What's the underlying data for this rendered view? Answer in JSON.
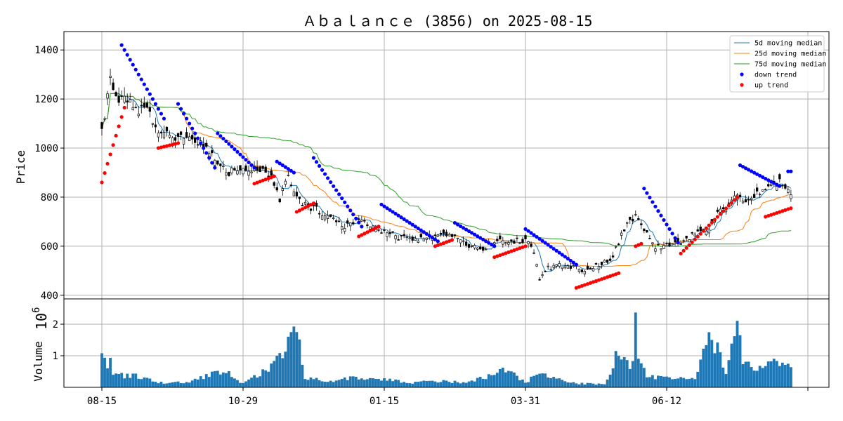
{
  "chart_data": {
    "type": "candlestick",
    "title": "Ａｂａｌａｎｃｅ (3856) on 2025-08-15",
    "price_panel": {
      "ylabel": "Price",
      "ylim": [
        385,
        1475
      ],
      "yticks": [
        400,
        600,
        800,
        1000,
        1200,
        1400
      ],
      "grid": true
    },
    "volume_panel": {
      "ylabel": "Volume",
      "offset_label": "10",
      "offset_exponent": "6",
      "ylim": [
        0,
        2.8
      ],
      "yticks": [
        1,
        2
      ],
      "grid": true,
      "bar_color": "#1f77b4"
    },
    "x_axis": {
      "tick_labels": [
        "08-15",
        "10-29",
        "01-15",
        "03-31",
        "06-12",
        ""
      ],
      "tick_index": [
        0,
        50,
        100,
        150,
        200,
        250
      ],
      "n_sessions": 245
    },
    "legend": {
      "placement": "top-right",
      "entries": [
        {
          "label": " 5d moving median",
          "kind": "line",
          "color": "#1f77b4"
        },
        {
          "label": "25d moving median",
          "kind": "line",
          "color": "#ff7f0e"
        },
        {
          "label": "75d moving median",
          "kind": "line",
          "color": "#2ca02c"
        },
        {
          "label": "down trend",
          "kind": "dot",
          "color": "#0000ff"
        },
        {
          "label": "up trend",
          "kind": "dot",
          "color": "#ff0000"
        }
      ]
    },
    "close_anchors": [
      [
        0,
        1060
      ],
      [
        3,
        1300
      ],
      [
        5,
        1200
      ],
      [
        8,
        1220
      ],
      [
        12,
        1160
      ],
      [
        16,
        1160
      ],
      [
        20,
        1060
      ],
      [
        25,
        1040
      ],
      [
        30,
        1040
      ],
      [
        35,
        1010
      ],
      [
        40,
        960
      ],
      [
        45,
        900
      ],
      [
        50,
        915
      ],
      [
        55,
        920
      ],
      [
        60,
        880
      ],
      [
        63,
        780
      ],
      [
        66,
        900
      ],
      [
        69,
        790
      ],
      [
        72,
        770
      ],
      [
        76,
        750
      ],
      [
        80,
        720
      ],
      [
        85,
        680
      ],
      [
        90,
        710
      ],
      [
        95,
        690
      ],
      [
        100,
        660
      ],
      [
        105,
        635
      ],
      [
        110,
        630
      ],
      [
        115,
        625
      ],
      [
        120,
        660
      ],
      [
        125,
        640
      ],
      [
        130,
        600
      ],
      [
        135,
        590
      ],
      [
        140,
        620
      ],
      [
        145,
        620
      ],
      [
        150,
        620
      ],
      [
        153,
        580
      ],
      [
        155,
        460
      ],
      [
        158,
        510
      ],
      [
        162,
        520
      ],
      [
        165,
        520
      ],
      [
        170,
        505
      ],
      [
        175,
        520
      ],
      [
        180,
        540
      ],
      [
        183,
        620
      ],
      [
        186,
        690
      ],
      [
        189,
        720
      ],
      [
        193,
        650
      ],
      [
        196,
        600
      ],
      [
        200,
        600
      ],
      [
        205,
        620
      ],
      [
        210,
        650
      ],
      [
        215,
        680
      ],
      [
        220,
        760
      ],
      [
        225,
        820
      ],
      [
        228,
        780
      ],
      [
        232,
        810
      ],
      [
        236,
        830
      ],
      [
        240,
        860
      ],
      [
        242,
        840
      ],
      [
        244,
        810
      ]
    ],
    "volume_anchors": [
      [
        0,
        1.05
      ],
      [
        1,
        1.15
      ],
      [
        2,
        0.7
      ],
      [
        3,
        0.8
      ],
      [
        4,
        0.45
      ],
      [
        8,
        0.35
      ],
      [
        12,
        0.35
      ],
      [
        20,
        0.15
      ],
      [
        30,
        0.15
      ],
      [
        43,
        0.55
      ],
      [
        50,
        0.12
      ],
      [
        61,
        0.75
      ],
      [
        66,
        1.3
      ],
      [
        69,
        1.8
      ],
      [
        70,
        1.3
      ],
      [
        72,
        0.3
      ],
      [
        80,
        0.2
      ],
      [
        90,
        0.3
      ],
      [
        100,
        0.25
      ],
      [
        110,
        0.15
      ],
      [
        120,
        0.2
      ],
      [
        130,
        0.15
      ],
      [
        143,
        0.55
      ],
      [
        150,
        0.15
      ],
      [
        155,
        0.45
      ],
      [
        160,
        0.3
      ],
      [
        168,
        0.12
      ],
      [
        178,
        0.1
      ],
      [
        180,
        0.35
      ],
      [
        182,
        1.1
      ],
      [
        188,
        0.7
      ],
      [
        189,
        2.65
      ],
      [
        190,
        1.0
      ],
      [
        193,
        0.35
      ],
      [
        200,
        0.3
      ],
      [
        210,
        0.25
      ],
      [
        215,
        1.5
      ],
      [
        218,
        1.2
      ],
      [
        221,
        0.55
      ],
      [
        225,
        2.05
      ],
      [
        227,
        0.9
      ],
      [
        233,
        0.6
      ],
      [
        238,
        0.75
      ],
      [
        242,
        0.9
      ],
      [
        244,
        0.55
      ]
    ],
    "down_trend_segments": [
      [
        7,
        22,
        1420,
        1120
      ],
      [
        27,
        40,
        1180,
        920
      ],
      [
        41,
        54,
        1060,
        920
      ],
      [
        62,
        68,
        945,
        900
      ],
      [
        75,
        92,
        960,
        680
      ],
      [
        99,
        119,
        770,
        620
      ],
      [
        125,
        139,
        695,
        600
      ],
      [
        150,
        168,
        670,
        525
      ],
      [
        192,
        204,
        835,
        615
      ],
      [
        226,
        240,
        930,
        845
      ],
      [
        243,
        244,
        905,
        905
      ]
    ],
    "up_trend_segments": [
      [
        0,
        8,
        860,
        1165
      ],
      [
        20,
        27,
        1000,
        1020
      ],
      [
        54,
        61,
        855,
        885
      ],
      [
        69,
        75,
        740,
        775
      ],
      [
        91,
        98,
        640,
        680
      ],
      [
        118,
        124,
        600,
        625
      ],
      [
        139,
        150,
        555,
        600
      ],
      [
        168,
        183,
        430,
        490
      ],
      [
        189,
        191,
        600,
        610
      ],
      [
        205,
        225,
        570,
        800
      ],
      [
        235,
        244,
        720,
        755
      ]
    ]
  }
}
